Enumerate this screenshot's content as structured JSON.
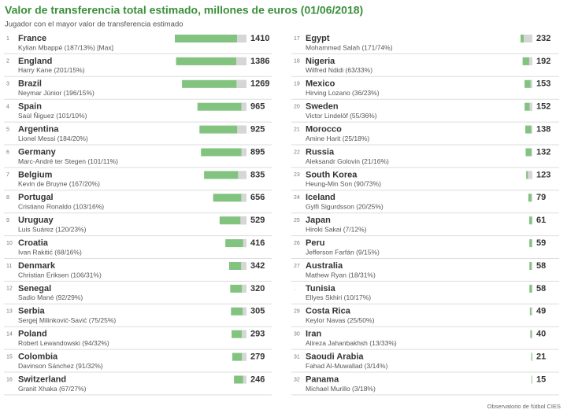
{
  "chart_data": {
    "type": "bar",
    "title": "Valor de transferencia total estimado, millones de euros (01/06/2018)",
    "subtitle": "Jugador con el mayor valor de transferencia estimado",
    "source": "Observatorio de fútbol CIES",
    "color": "#82c37f",
    "player_color": "#d6d6d6",
    "ranks": [
      1,
      2,
      3,
      4,
      5,
      6,
      7,
      8,
      9,
      10,
      11,
      12,
      13,
      14,
      15,
      16,
      17,
      18,
      19,
      20,
      21,
      22,
      23,
      24,
      25,
      26,
      27,
      ".",
      29,
      30,
      31,
      32
    ],
    "categories": [
      "France",
      "England",
      "Brazil",
      "Spain",
      "Argentina",
      "Germany",
      "Belgium",
      "Portugal",
      "Uruguay",
      "Croatia",
      "Denmark",
      "Senegal",
      "Serbia",
      "Poland",
      "Colombia",
      "Switzerland",
      "Egypt",
      "Nigeria",
      "Mexico",
      "Sweden",
      "Morocco",
      "Russia",
      "South Korea",
      "Iceland",
      "Japan",
      "Peru",
      "Australia",
      "Tunisia",
      "Costa Rica",
      "Iran",
      "Saoudi Arabia",
      "Panama"
    ],
    "players": [
      "Kylian Mbappé (187/13%) [Max]",
      "Harry Kane (201/15%)",
      "Neymar Júnior (196/15%)",
      "Saúl Ñiguez (101/10%)",
      "Lionel Messi (184/20%)",
      "Marc-André ter Stegen (101/11%)",
      "Kevin de Bruyne (167/20%)",
      "Cristiano Ronaldo (103/16%)",
      "Luis Suárez (120/23%)",
      "Ivan Rakitić (68/16%)",
      "Christian Eriksen (106/31%)",
      "Sadio Mané (92/29%)",
      "Sergej Milinković-Savić (75/25%)",
      "Robert Lewandowski (94/32%)",
      "Davinson Sánchez (91/32%)",
      "Granit Xhaka (67/27%)",
      "Mohammed Salah (171/74%)",
      "Wilfred Ndidi (63/33%)",
      "Hirving Lozano (36/23%)",
      "Victor Lindelöf (55/36%)",
      "Amine Harit (25/18%)",
      "Aleksandr Golovin (21/16%)",
      "Heung-Min Son (90/73%)",
      "Gylfi Sigurdsson (20/25%)",
      "Hiroki Sakai (7/12%)",
      "Jefferson Farfán (9/15%)",
      "Mathew Ryan (18/31%)",
      "Ellyes Skhiri (10/17%)",
      "Keylor Navas (25/50%)",
      "Alireza Jahanbakhsh (13/33%)",
      "Fahad Al-Muwallad (3/14%)",
      "Michael Murillo (3/18%)"
    ],
    "values": [
      1410,
      1386,
      1269,
      965,
      925,
      895,
      835,
      656,
      529,
      416,
      342,
      320,
      305,
      293,
      279,
      246,
      232,
      192,
      153,
      152,
      138,
      132,
      123,
      79,
      61,
      59,
      58,
      58,
      49,
      40,
      21,
      15
    ],
    "player_values": [
      187,
      201,
      196,
      101,
      184,
      101,
      167,
      103,
      120,
      68,
      106,
      92,
      75,
      94,
      91,
      67,
      171,
      63,
      36,
      55,
      25,
      21,
      90,
      20,
      7,
      9,
      18,
      10,
      25,
      13,
      3,
      3
    ]
  }
}
